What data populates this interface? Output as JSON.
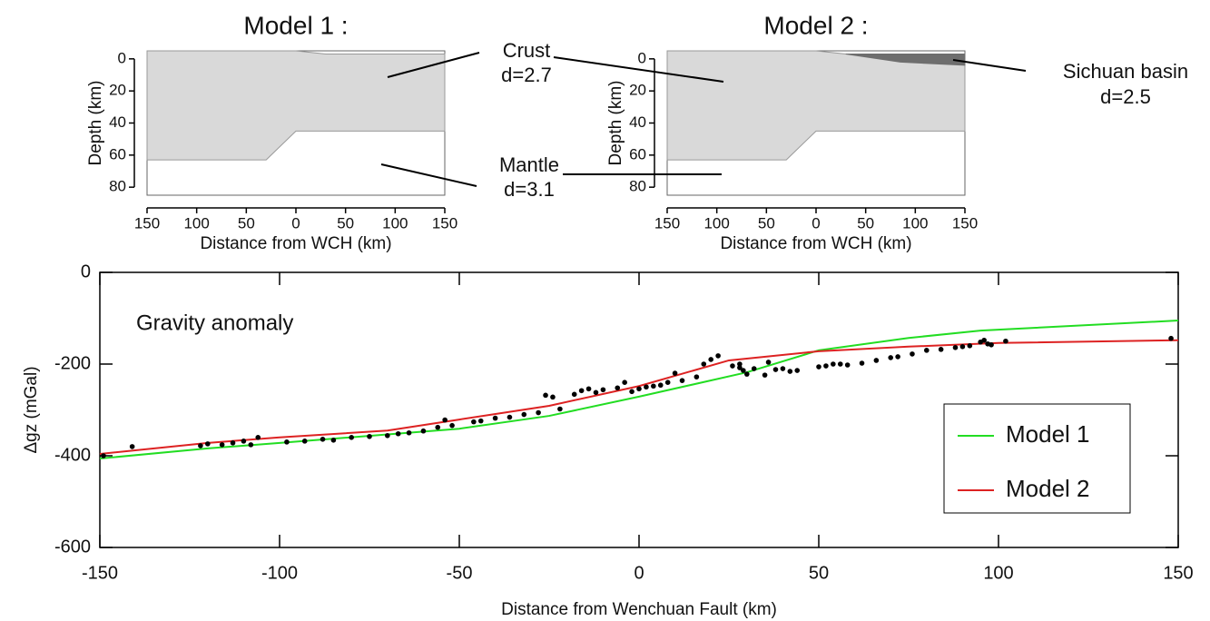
{
  "labels": [
    "Crust",
    "d=2.7",
    "Mantle",
    "d=3.1",
    "Sichuan basin",
    "d=2.5"
  ],
  "chart_data": [
    {
      "type": "section",
      "title": "Model 1 :",
      "xlabel": "Distance from WCH (km)",
      "ylabel": "Depth (km)",
      "xlim": [
        -150,
        150
      ],
      "ylim": [
        -5,
        85
      ],
      "y_inverted": true,
      "xticks": [
        {
          "value": -150,
          "label": "150"
        },
        {
          "value": -100,
          "label": "100"
        },
        {
          "value": -50,
          "label": "50"
        },
        0,
        50,
        100,
        150
      ],
      "yticks": [
        0,
        20,
        40,
        60,
        80
      ],
      "layers": [
        {
          "color": "#d9d9d9",
          "top": {
            "x": [
              -150,
              0,
              30,
              150
            ],
            "y": [
              -5,
              -5,
              -3,
              -3
            ]
          },
          "bottom": {
            "x": [
              -150,
              -30,
              0,
              150
            ],
            "y": [
              63,
              63,
              45,
              45
            ]
          }
        }
      ]
    },
    {
      "type": "section",
      "title": "Model 2 :",
      "xlabel": "Distance from WCH (km)",
      "ylabel": "Depth (km)",
      "xlim": [
        -150,
        150
      ],
      "ylim": [
        -5,
        85
      ],
      "y_inverted": true,
      "xticks": [
        {
          "value": -150,
          "label": "150"
        },
        {
          "value": -100,
          "label": "100"
        },
        {
          "value": -50,
          "label": "50"
        },
        0,
        50,
        100,
        150
      ],
      "yticks": [
        0,
        20,
        40,
        60,
        80
      ],
      "layers": [
        {
          "color": "#d9d9d9",
          "top": {
            "x": [
              -150,
              0,
              30,
              150
            ],
            "y": [
              -5,
              -5,
              -3,
              -3
            ]
          },
          "bottom": {
            "x": [
              -150,
              -30,
              0,
              150
            ],
            "y": [
              63,
              63,
              45,
              45
            ]
          }
        },
        {
          "color": "#6e6e6e",
          "top": {
            "x": [
              30,
              150
            ],
            "y": [
              -3,
              -3
            ]
          },
          "bottom": {
            "x": [
              30,
              85,
              150
            ],
            "y": [
              -3,
              2,
              4
            ]
          }
        }
      ]
    },
    {
      "type": "line",
      "annotation": "Gravity anomaly",
      "xlabel": "Distance from Wenchuan Fault (km)",
      "ylabel": "Δgz (mGal)",
      "xlim": [
        -150,
        150
      ],
      "ylim": [
        -600,
        0
      ],
      "xticks": [
        -150,
        -100,
        -50,
        0,
        50,
        100,
        150
      ],
      "yticks": [
        -600,
        -400,
        -200,
        0
      ],
      "legend": "lower right",
      "series": [
        {
          "name": "Model 1",
          "color": "#22dd22",
          "x": [
            -150,
            -120,
            -100,
            -50,
            -25,
            0,
            30,
            50,
            75,
            95,
            150
          ],
          "values": [
            -406,
            -384,
            -372,
            -341,
            -313,
            -271,
            -218,
            -170,
            -143,
            -127,
            -105
          ]
        },
        {
          "name": "Model 2",
          "color": "#dd2222",
          "x": [
            -150,
            -120,
            -100,
            -70,
            -50,
            -25,
            0,
            25,
            50,
            75,
            100,
            150
          ],
          "values": [
            -396,
            -372,
            -360,
            -345,
            -321,
            -291,
            -248,
            -192,
            -172,
            -162,
            -154,
            -148
          ]
        }
      ],
      "points": {
        "color": "#000000",
        "x": [
          -149,
          -141,
          -122,
          -120,
          -116,
          -113,
          -110,
          -108,
          -106,
          -98,
          -93,
          -88,
          -85,
          -80,
          -75,
          -70,
          -67,
          -64,
          -60,
          -56,
          -54,
          -52,
          -46,
          -44,
          -40,
          -36,
          -32,
          -28,
          -26,
          -24,
          -22,
          -18,
          -16,
          -14,
          -12,
          -10,
          -6,
          -4,
          -2,
          0,
          2,
          4,
          6,
          8,
          10,
          12,
          16,
          18,
          20,
          22,
          26,
          28,
          28,
          29,
          30,
          32,
          35,
          36,
          38,
          40,
          42,
          44,
          50,
          52,
          54,
          56,
          58,
          62,
          66,
          70,
          72,
          76,
          80,
          84,
          88,
          90,
          92,
          95,
          96,
          97,
          98,
          102,
          148
        ],
        "values": [
          -400,
          -380,
          -378,
          -374,
          -376,
          -372,
          -368,
          -376,
          -360,
          -370,
          -368,
          -364,
          -366,
          -360,
          -358,
          -356,
          -352,
          -350,
          -346,
          -338,
          -322,
          -334,
          -326,
          -324,
          -318,
          -316,
          -310,
          -306,
          -268,
          -272,
          -298,
          -266,
          -258,
          -254,
          -262,
          -256,
          -252,
          -240,
          -260,
          -254,
          -250,
          -248,
          -246,
          -240,
          -220,
          -236,
          -228,
          -200,
          -190,
          -182,
          -204,
          -208,
          -200,
          -214,
          -222,
          -210,
          -224,
          -196,
          -212,
          -210,
          -216,
          -214,
          -206,
          -204,
          -200,
          -200,
          -202,
          -198,
          -192,
          -186,
          -184,
          -178,
          -170,
          -168,
          -164,
          -162,
          -160,
          -152,
          -148,
          -156,
          -158,
          -150,
          -144
        ]
      }
    }
  ]
}
